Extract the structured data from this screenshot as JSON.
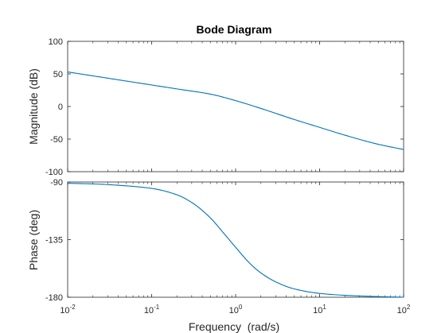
{
  "chart_data": [
    {
      "type": "line",
      "panel": "magnitude",
      "title": "Bode Diagram",
      "xlabel": "",
      "ylabel": "Magnitude (dB)",
      "xscale": "log",
      "xlim": [
        0.01,
        100
      ],
      "ylim": [
        -100,
        100
      ],
      "yticks": [
        "100",
        "50",
        "0",
        "-50",
        "-100"
      ],
      "grid": false,
      "color": "#0072BD",
      "series": [
        {
          "x": [
            0.01,
            0.02,
            0.05,
            0.1,
            0.2,
            0.5,
            1,
            2,
            5,
            10,
            20,
            50,
            100
          ],
          "values": [
            53,
            47,
            39,
            33,
            27,
            19,
            9,
            -3,
            -20,
            -32,
            -44,
            -58,
            -66
          ]
        }
      ]
    },
    {
      "type": "line",
      "panel": "phase",
      "title": "",
      "xlabel": "Frequency  (rad/s)",
      "ylabel": "Phase (deg)",
      "xscale": "log",
      "xlim": [
        0.01,
        100
      ],
      "ylim": [
        -180,
        -90
      ],
      "yticks": [
        "-90",
        "-135",
        "-180"
      ],
      "xticks": [
        {
          "base": "10",
          "exp": "-2"
        },
        {
          "base": "10",
          "exp": "-1"
        },
        {
          "base": "10",
          "exp": "0"
        },
        {
          "base": "10",
          "exp": "1"
        },
        {
          "base": "10",
          "exp": "2"
        }
      ],
      "grid": false,
      "color": "#0072BD",
      "series": [
        {
          "x": [
            0.01,
            0.02,
            0.05,
            0.1,
            0.2,
            0.3,
            0.5,
            0.7,
            1,
            1.5,
            2,
            3,
            5,
            10,
            20,
            50,
            100
          ],
          "values": [
            -91,
            -91.5,
            -93,
            -95,
            -100,
            -106,
            -118,
            -129,
            -141,
            -154,
            -161,
            -168,
            -173.5,
            -177,
            -178.5,
            -179.5,
            -180
          ]
        }
      ]
    }
  ]
}
